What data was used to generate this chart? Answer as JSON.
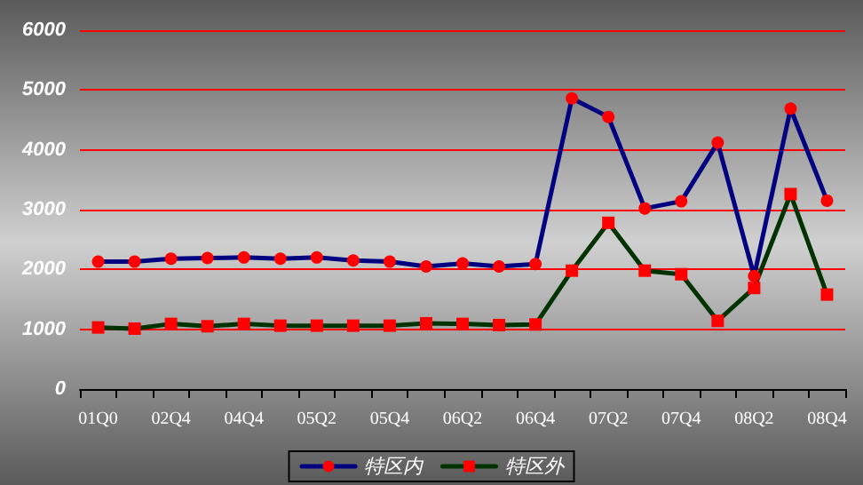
{
  "chart_data": {
    "type": "line",
    "categories": [
      "01Q0",
      null,
      "02Q4",
      null,
      "04Q4",
      null,
      "05Q2",
      null,
      "05Q4",
      null,
      "06Q2",
      null,
      "06Q4",
      null,
      "07Q2",
      null,
      "07Q4",
      null,
      "08Q2",
      null,
      "08Q4"
    ],
    "series": [
      {
        "name": "特区内",
        "color": "#000080",
        "marker": "circle",
        "values": [
          2130,
          2130,
          2180,
          2190,
          2200,
          2180,
          2200,
          2150,
          2130,
          2050,
          2100,
          2050,
          2090,
          4860,
          4550,
          3020,
          3140,
          4120,
          1890,
          4690,
          3150
        ]
      },
      {
        "name": "特区外",
        "color": "#003300",
        "marker": "square",
        "values": [
          1030,
          1010,
          1090,
          1050,
          1090,
          1060,
          1060,
          1060,
          1060,
          1100,
          1090,
          1070,
          1080,
          1980,
          2780,
          1980,
          1920,
          1140,
          1690,
          3260,
          1580
        ]
      }
    ],
    "ylim": [
      0,
      6000
    ],
    "yticks": [
      0,
      1000,
      2000,
      3000,
      4000,
      5000,
      6000
    ],
    "grid": "y",
    "legend": "bottom"
  }
}
